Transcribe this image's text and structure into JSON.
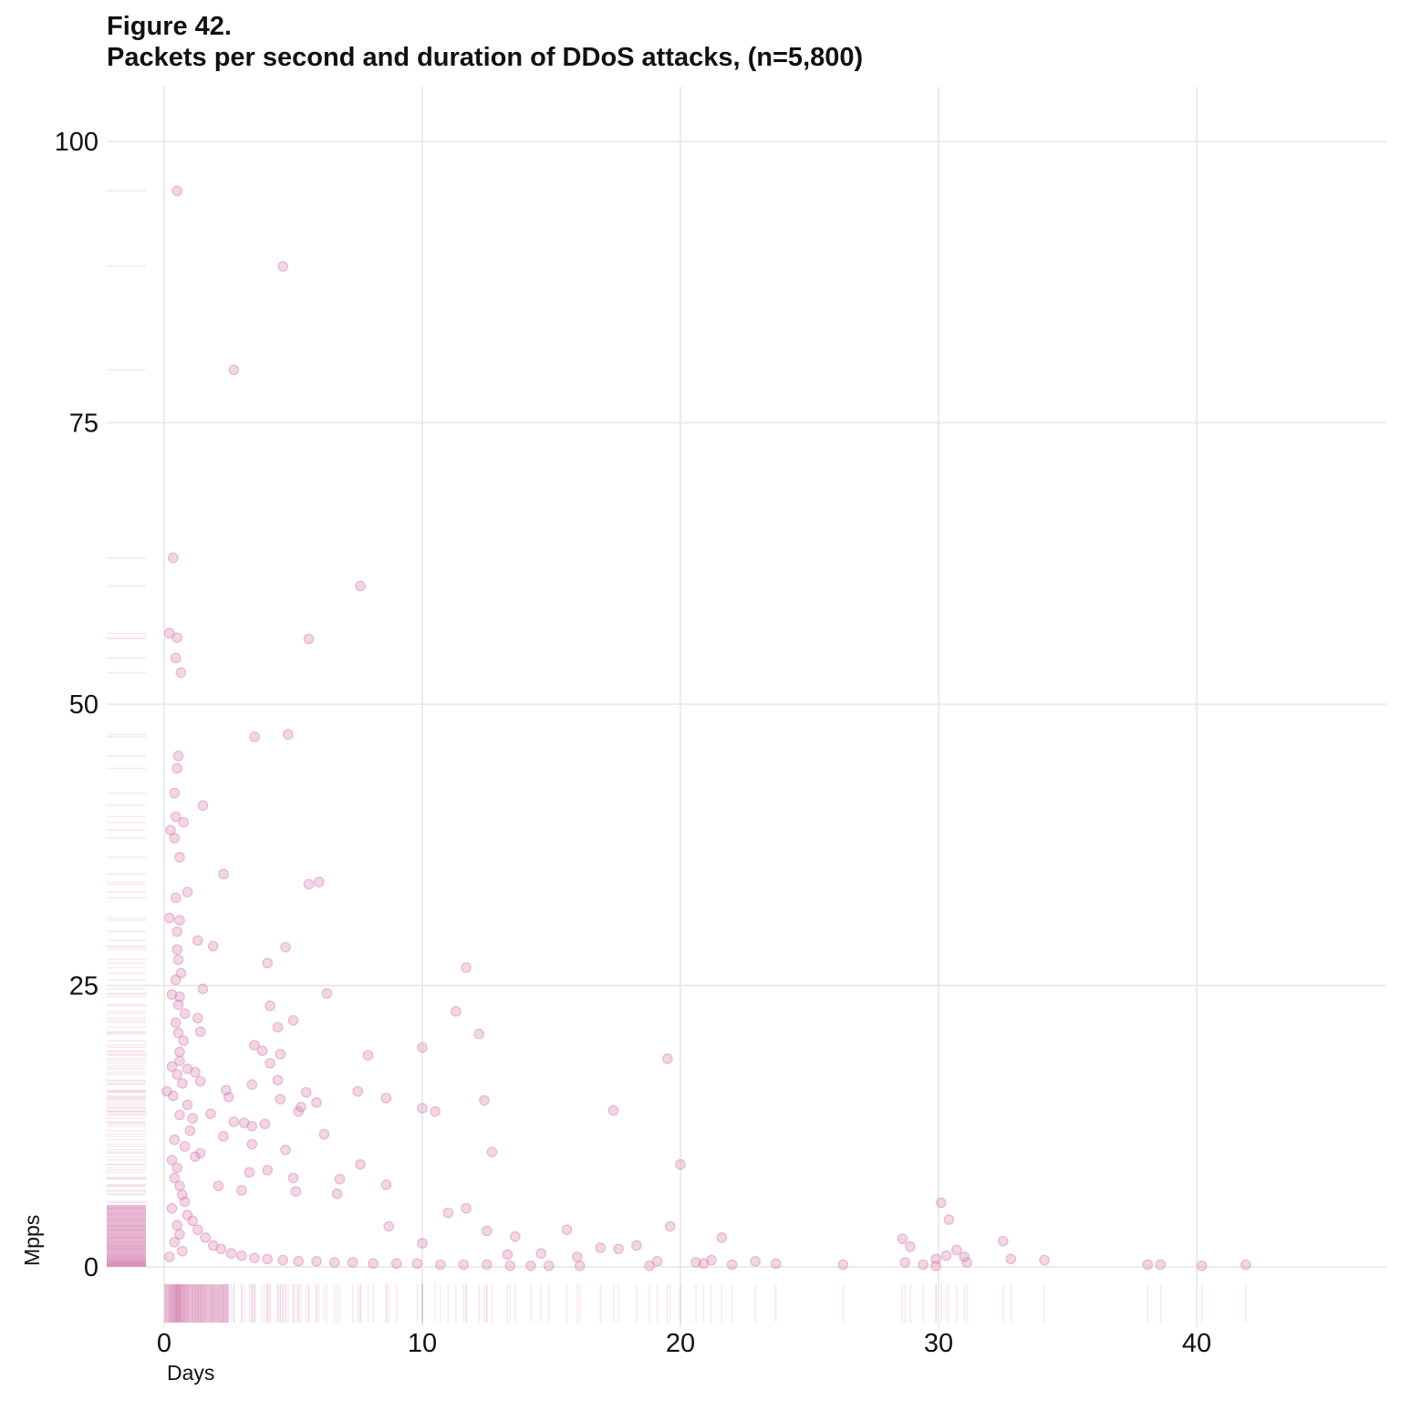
{
  "figure_label": "Figure 42.",
  "title": "Packets per second and duration of DDoS attacks, (n=5,800)",
  "chart_data": {
    "type": "scatter",
    "title": "Packets per second and duration of DDoS attacks, (n=5,800)",
    "xlabel": "Days",
    "ylabel": "Mpps",
    "xlim": [
      -2.2,
      47.5
    ],
    "ylim": [
      -5,
      105
    ],
    "x_ticks": [
      0,
      10,
      20,
      30,
      40
    ],
    "y_ticks": [
      0,
      25,
      50,
      75,
      100
    ],
    "grid": true,
    "legend": "none",
    "rug_plots": [
      "x-bottom",
      "y-left"
    ],
    "point_color": "#d98ab5",
    "points": [
      [
        0.5,
        95.6
      ],
      [
        4.6,
        88.9
      ],
      [
        2.7,
        79.7
      ],
      [
        0.35,
        63
      ],
      [
        7.6,
        60.5
      ],
      [
        0.2,
        56.3
      ],
      [
        0.5,
        55.9
      ],
      [
        5.6,
        55.8
      ],
      [
        0.45,
        54.1
      ],
      [
        0.65,
        52.8
      ],
      [
        3.5,
        47.1
      ],
      [
        4.8,
        47.3
      ],
      [
        0.55,
        45.4
      ],
      [
        0.5,
        44.3
      ],
      [
        0.4,
        42.1
      ],
      [
        1.5,
        41
      ],
      [
        0.45,
        40
      ],
      [
        0.75,
        39.5
      ],
      [
        0.25,
        38.8
      ],
      [
        0.4,
        38.1
      ],
      [
        0.6,
        36.4
      ],
      [
        2.3,
        34.9
      ],
      [
        5.6,
        34
      ],
      [
        6.0,
        34.2
      ],
      [
        0.9,
        33.3
      ],
      [
        0.45,
        32.8
      ],
      [
        0.2,
        31
      ],
      [
        0.6,
        30.8
      ],
      [
        0.5,
        29.8
      ],
      [
        1.3,
        29
      ],
      [
        1.9,
        28.5
      ],
      [
        4.7,
        28.4
      ],
      [
        0.55,
        27.3
      ],
      [
        4.0,
        27
      ],
      [
        11.7,
        26.6
      ],
      [
        0.45,
        25.5
      ],
      [
        1.5,
        24.7
      ],
      [
        0.3,
        24.2
      ],
      [
        6.3,
        24.3
      ],
      [
        0.6,
        24
      ],
      [
        4.1,
        23.2
      ],
      [
        11.3,
        22.7
      ],
      [
        0.8,
        22.5
      ],
      [
        5.0,
        21.9
      ],
      [
        1.3,
        22.1
      ],
      [
        4.4,
        21.3
      ],
      [
        1.4,
        20.9
      ],
      [
        0.55,
        20.8
      ],
      [
        12.2,
        20.7
      ],
      [
        3.5,
        19.7
      ],
      [
        10.0,
        19.5
      ],
      [
        0.6,
        19.1
      ],
      [
        3.8,
        19.2
      ],
      [
        4.5,
        18.9
      ],
      [
        7.9,
        18.8
      ],
      [
        19.5,
        18.5
      ],
      [
        4.1,
        18.1
      ],
      [
        0.3,
        17.8
      ],
      [
        1.2,
        17.3
      ],
      [
        0.9,
        17.6
      ],
      [
        4.4,
        16.6
      ],
      [
        1.4,
        16.5
      ],
      [
        3.4,
        16.2
      ],
      [
        2.4,
        15.7
      ],
      [
        0.1,
        15.6
      ],
      [
        7.5,
        15.6
      ],
      [
        5.5,
        15.5
      ],
      [
        2.5,
        15.1
      ],
      [
        4.5,
        14.9
      ],
      [
        8.6,
        15
      ],
      [
        5.3,
        14.2
      ],
      [
        12.4,
        14.8
      ],
      [
        5.9,
        14.6
      ],
      [
        17.4,
        13.9
      ],
      [
        10.0,
        14.1
      ],
      [
        10.5,
        13.8
      ],
      [
        5.2,
        13.8
      ],
      [
        1.8,
        13.6
      ],
      [
        1.1,
        13.2
      ],
      [
        2.7,
        12.9
      ],
      [
        3.1,
        12.8
      ],
      [
        3.4,
        12.5
      ],
      [
        3.9,
        12.7
      ],
      [
        6.2,
        11.8
      ],
      [
        2.3,
        11.6
      ],
      [
        12.7,
        10.2
      ],
      [
        4.7,
        10.4
      ],
      [
        1.4,
        10.1
      ],
      [
        3.4,
        10.9
      ],
      [
        20.0,
        9.1
      ],
      [
        7.6,
        9.1
      ],
      [
        4.0,
        8.6
      ],
      [
        3.3,
        8.4
      ],
      [
        6.8,
        7.8
      ],
      [
        5.0,
        7.9
      ],
      [
        8.6,
        7.3
      ],
      [
        2.1,
        7.2
      ],
      [
        3.0,
        6.8
      ],
      [
        5.1,
        6.7
      ],
      [
        6.7,
        6.5
      ],
      [
        30.1,
        5.7
      ],
      [
        11.7,
        5.2
      ],
      [
        11.0,
        4.8
      ],
      [
        30.4,
        4.2
      ],
      [
        19.6,
        3.6
      ],
      [
        8.7,
        3.6
      ],
      [
        15.6,
        3.3
      ],
      [
        12.5,
        3.2
      ],
      [
        13.6,
        2.7
      ],
      [
        21.6,
        2.6
      ],
      [
        28.6,
        2.5
      ],
      [
        32.5,
        2.3
      ],
      [
        10.0,
        2.1
      ],
      [
        18.3,
        1.9
      ],
      [
        16.9,
        1.7
      ],
      [
        17.6,
        1.6
      ],
      [
        28.9,
        1.8
      ],
      [
        30.7,
        1.5
      ],
      [
        14.6,
        1.2
      ],
      [
        13.3,
        1.1
      ],
      [
        30.3,
        1
      ],
      [
        31.0,
        0.9
      ],
      [
        29.9,
        0.7
      ],
      [
        22.9,
        0.5
      ],
      [
        32.8,
        0.7
      ],
      [
        34.1,
        0.6
      ],
      [
        16.0,
        0.9
      ],
      [
        19.1,
        0.5
      ],
      [
        20.6,
        0.4
      ],
      [
        23.7,
        0.3
      ],
      [
        26.3,
        0.2
      ],
      [
        29.4,
        0.2
      ],
      [
        29.9,
        0.1
      ],
      [
        38.1,
        0.2
      ],
      [
        38.6,
        0.2
      ],
      [
        40.2,
        0.1
      ],
      [
        41.9,
        0.2
      ],
      [
        16.1,
        0.1
      ],
      [
        20.9,
        0.3
      ],
      [
        18.8,
        0.1
      ],
      [
        21.2,
        0.6
      ],
      [
        22.0,
        0.2
      ],
      [
        28.7,
        0.4
      ],
      [
        31.1,
        0.4
      ],
      [
        14.9,
        0.1
      ],
      [
        0.3,
        9.5
      ],
      [
        0.5,
        8.8
      ],
      [
        0.4,
        7.9
      ],
      [
        0.6,
        7.2
      ],
      [
        0.7,
        6.4
      ],
      [
        0.8,
        5.8
      ],
      [
        0.3,
        5.2
      ],
      [
        0.9,
        4.6
      ],
      [
        1.1,
        4.1
      ],
      [
        0.5,
        3.7
      ],
      [
        1.3,
        3.3
      ],
      [
        0.6,
        2.9
      ],
      [
        1.6,
        2.6
      ],
      [
        0.4,
        2.2
      ],
      [
        1.9,
        1.9
      ],
      [
        2.2,
        1.6
      ],
      [
        0.7,
        1.4
      ],
      [
        2.6,
        1.2
      ],
      [
        3.0,
        1.0
      ],
      [
        0.2,
        0.9
      ],
      [
        3.5,
        0.8
      ],
      [
        4.0,
        0.7
      ],
      [
        4.6,
        0.6
      ],
      [
        5.2,
        0.5
      ],
      [
        5.9,
        0.5
      ],
      [
        6.6,
        0.4
      ],
      [
        7.3,
        0.4
      ],
      [
        8.1,
        0.3
      ],
      [
        9.0,
        0.3
      ],
      [
        9.8,
        0.3
      ],
      [
        10.7,
        0.2
      ],
      [
        11.6,
        0.2
      ],
      [
        12.5,
        0.2
      ],
      [
        13.4,
        0.1
      ],
      [
        14.2,
        0.1
      ],
      [
        1.0,
        12.1
      ],
      [
        0.4,
        11.3
      ],
      [
        0.8,
        10.7
      ],
      [
        1.2,
        9.8
      ],
      [
        0.6,
        13.5
      ],
      [
        0.9,
        14.4
      ],
      [
        0.35,
        15.2
      ],
      [
        0.7,
        16.3
      ],
      [
        0.5,
        17.1
      ],
      [
        0.6,
        18.3
      ],
      [
        0.75,
        20.1
      ],
      [
        0.45,
        21.7
      ],
      [
        0.55,
        23.3
      ],
      [
        0.65,
        26.1
      ],
      [
        0.5,
        28.2
      ]
    ]
  }
}
